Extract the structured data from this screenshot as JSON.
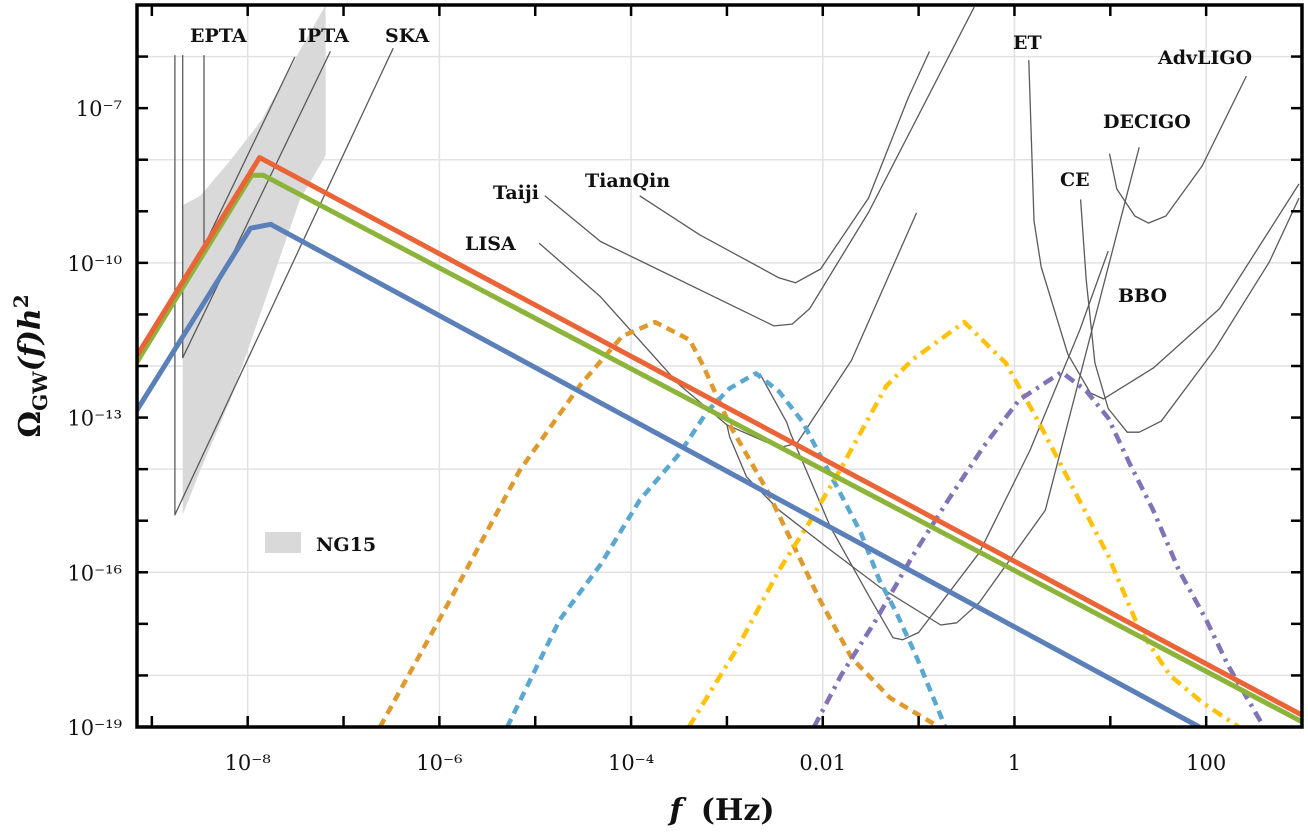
{
  "chart_data": {
    "type": "line",
    "xscale": "log",
    "yscale": "log",
    "xlim": [
      7e-10,
      1000
    ],
    "ylim": [
      1e-19,
      1e-05
    ],
    "grid": true,
    "xlabel": {
      "variable": "f",
      "unit": "(Hz)"
    },
    "ylabel": {
      "symbol": "Ω",
      "subscript": "GW",
      "argument": "(f)",
      "suffix": "h",
      "superscript": "2"
    },
    "xticks": [
      {
        "value": 1e-08,
        "label": "10⁻⁸"
      },
      {
        "value": 1e-06,
        "label": "10⁻⁶"
      },
      {
        "value": 0.0001,
        "label": "10⁻⁴"
      },
      {
        "value": 0.01,
        "label": "0.01"
      },
      {
        "value": 1,
        "label": "1"
      },
      {
        "value": 100,
        "label": "100"
      }
    ],
    "yticks": [
      {
        "value": 1e-07,
        "label": "10⁻⁷"
      },
      {
        "value": 1e-10,
        "label": "10⁻¹⁰"
      },
      {
        "value": 1e-13,
        "label": "10⁻¹³"
      },
      {
        "value": 1e-16,
        "label": "10⁻¹⁶"
      },
      {
        "value": 1e-19,
        "label": "10⁻¹⁹"
      }
    ],
    "band": {
      "name": "NG15",
      "color": "#d9d9d9",
      "upper": [
        [
          2.1e-09,
          1.3e-09
        ],
        [
          3.2e-09,
          2e-09
        ],
        [
          6.6e-09,
          9.8e-09
        ],
        [
          1.4e-08,
          5.9e-08
        ],
        [
          3.5e-08,
          1.3e-06
        ],
        [
          6.5e-08,
          1e-05
        ]
      ],
      "lower": [
        [
          2.1e-09,
          1.3e-15
        ],
        [
          3.2e-09,
          9.5e-15
        ],
        [
          6.6e-09,
          2.2e-13
        ],
        [
          1.4e-08,
          1.2e-11
        ],
        [
          3.5e-08,
          1.66e-09
        ],
        [
          6.5e-08,
          1.2e-08
        ]
      ]
    },
    "sensitivity_curves": [
      {
        "name": "EPTA",
        "points": [
          [
            3.5e-09,
            1.07e-06
          ],
          [
            3.5e-09,
            2.1e-10
          ],
          [
            3.1e-08,
            9.8e-07
          ]
        ]
      },
      {
        "name": "IPTA",
        "points": [
          [
            2.1e-09,
            1.07e-06
          ],
          [
            2.1e-09,
            1.45e-12
          ],
          [
            7.3e-08,
            1.26e-06
          ]
        ]
      },
      {
        "name": "SKA",
        "points": [
          [
            1.74e-09,
            1.07e-06
          ],
          [
            1.74e-09,
            1.3e-15
          ],
          [
            3.3e-07,
            1.45e-06
          ]
        ]
      },
      {
        "name": "Taiji",
        "points": [
          [
            1.26e-05,
            2e-09
          ],
          [
            4.8e-05,
            2.6e-10
          ],
          [
            0.0031,
            6e-12
          ],
          [
            0.0048,
            6.5e-12
          ],
          [
            0.0073,
            1.3e-11
          ],
          [
            0.03,
            9.5e-10
          ],
          [
            0.38,
            9.1e-06
          ]
        ]
      },
      {
        "name": "TianQin",
        "points": [
          [
            0.000123,
            2e-09
          ],
          [
            0.00052,
            3.5e-10
          ],
          [
            0.0035,
            5.1e-11
          ],
          [
            0.0052,
            4.1e-11
          ],
          [
            0.0095,
            7.6e-11
          ],
          [
            0.03,
            1.8e-09
          ],
          [
            0.078,
            1.6e-07
          ],
          [
            0.13,
            1.26e-06
          ]
        ]
      },
      {
        "name": "LISA",
        "points": [
          [
            1.1e-05,
            2.4e-10
          ],
          [
            4.8e-05,
            2.2e-11
          ],
          [
            0.00032,
            4.3e-13
          ],
          [
            0.001,
            7.2e-14
          ],
          [
            0.0035,
            2.6e-14
          ],
          [
            0.0054,
            3.2e-14
          ],
          [
            0.02,
            1.3e-12
          ],
          [
            0.095,
            9.3e-10
          ]
        ]
      },
      {
        "name": "ET",
        "points": [
          [
            1.41,
            8.5e-07
          ],
          [
            1.6,
            6.5e-10
          ],
          [
            1.9,
            8.3e-11
          ],
          [
            3.6,
            1.7e-12
          ],
          [
            6.2,
            3e-13
          ],
          [
            8.5,
            2.3e-13
          ],
          [
            28,
            9.1e-13
          ],
          [
            138,
            1.3e-11
          ],
          [
            930,
            3.4e-09
          ]
        ]
      },
      {
        "name": "AdvLIGO",
        "points": [
          [
            9.8,
            1.3e-08
          ],
          [
            11.7,
            2.7e-09
          ],
          [
            18,
            8.1e-10
          ],
          [
            25,
            5.9e-10
          ],
          [
            38,
            8.1e-10
          ],
          [
            91,
            7.6e-09
          ],
          [
            263,
            4.2e-07
          ]
        ]
      },
      {
        "name": "DECIGO",
        "points": [
          [
            0.001,
            7.2e-14
          ],
          [
            0.00107,
            4.2e-14
          ],
          [
            0.0016,
            7.1e-15
          ],
          [
            0.0035,
            1.6e-15
          ],
          [
            0.012,
            2.7e-16
          ],
          [
            0.039,
            5.2e-17
          ],
          [
            0.17,
            9.5e-18
          ],
          [
            0.25,
            1.05e-17
          ],
          [
            0.43,
            2.6e-17
          ],
          [
            2.1,
            1.6e-15
          ],
          [
            20,
            1.74e-08
          ]
        ]
      },
      {
        "name": "CE",
        "points": [
          [
            4.9,
            1.7e-09
          ],
          [
            5.6,
            4.7e-11
          ],
          [
            6.9,
            1.15e-12
          ],
          [
            9.5,
            1.5e-13
          ],
          [
            15,
            5.2e-14
          ],
          [
            20,
            5.2e-14
          ],
          [
            34,
            8.5e-14
          ],
          [
            123,
            2.1e-12
          ],
          [
            457,
            1.05e-10
          ],
          [
            930,
            1.8e-09
          ]
        ]
      },
      {
        "name": "BBO",
        "points": [
          [
            0.0022,
            7.2e-13
          ],
          [
            0.0042,
            8.1e-14
          ],
          [
            0.0046,
            5e-14
          ],
          [
            0.012,
            7.6e-16
          ],
          [
            0.029,
            4e-17
          ],
          [
            0.054,
            5.4e-18
          ],
          [
            0.068,
            4.9e-18
          ],
          [
            0.1,
            6.8e-18
          ],
          [
            0.43,
            2.4e-16
          ],
          [
            1.45,
            2.3e-14
          ],
          [
            4.8,
            5e-12
          ],
          [
            9.5,
            1.7e-10
          ]
        ]
      }
    ],
    "series": [
      {
        "color": "#ea6438",
        "style": "solid",
        "points": [
          [
            7e-10,
            1.6e-12
          ],
          [
            1.33e-08,
            1.1e-08
          ],
          [
            1000,
            1.7e-19
          ]
        ]
      },
      {
        "color": "#8db43a",
        "style": "solid",
        "points": [
          [
            7e-10,
            1.2e-12
          ],
          [
            1.1e-08,
            5e-09
          ],
          [
            1.45e-08,
            5e-09
          ],
          [
            1000,
            1.26e-19
          ]
        ]
      },
      {
        "color": "#5b7fb8",
        "style": "solid",
        "points": [
          [
            7e-10,
            1.4e-13
          ],
          [
            1.07e-08,
            4.7e-10
          ],
          [
            1.74e-08,
            5.6e-10
          ],
          [
            85,
            1e-19
          ]
        ]
      },
      {
        "color": "#de9a2e",
        "style": "dashed",
        "points": [
          [
            2.4e-07,
            1e-19
          ],
          [
            1.3e-06,
            2.95e-17
          ],
          [
            6.9e-06,
            9.5e-15
          ],
          [
            2.95e-05,
            4.3e-13
          ],
          [
            8.1e-05,
            3.8e-12
          ],
          [
            0.000178,
            7.1e-12
          ],
          [
            0.00041,
            3.2e-12
          ],
          [
            0.00056,
            1.05e-12
          ],
          [
            0.00107,
            7.2e-14
          ],
          [
            0.0026,
            4e-15
          ],
          [
            0.0054,
            2.4e-16
          ],
          [
            0.0093,
            2.95e-17
          ],
          [
            0.02,
            2.2e-18
          ],
          [
            0.05,
            3.7e-19
          ],
          [
            0.15,
            1.1e-19
          ]
        ]
      },
      {
        "color": "#5aa8d0",
        "style": "dashed",
        "points": [
          [
            5.1e-06,
            1e-19
          ],
          [
            1.8e-05,
            1.2e-17
          ],
          [
            4.8e-05,
            1.4e-16
          ],
          [
            0.000123,
            2.5e-15
          ],
          [
            0.00032,
            2e-14
          ],
          [
            0.00062,
            1.3e-13
          ],
          [
            0.00107,
            3.7e-13
          ],
          [
            0.002,
            7.2e-13
          ],
          [
            0.0035,
            3.2e-13
          ],
          [
            0.0062,
            8.1e-14
          ],
          [
            0.0093,
            1.9e-14
          ],
          [
            0.014,
            4.6e-15
          ],
          [
            0.025,
            5.8e-16
          ],
          [
            0.039,
            7.1e-17
          ],
          [
            0.059,
            1.6e-17
          ],
          [
            0.095,
            2.3e-18
          ],
          [
            0.19,
            1e-19
          ]
        ]
      },
      {
        "color": "#ffc20a",
        "style": "dashdot",
        "points": [
          [
            0.0004,
            1e-19
          ],
          [
            0.00126,
            3.2e-18
          ],
          [
            0.0035,
            1.1e-16
          ],
          [
            0.0072,
            9.1e-16
          ],
          [
            0.015,
            9.3e-15
          ],
          [
            0.046,
            4.1e-13
          ],
          [
            0.085,
            1.3e-12
          ],
          [
            0.3,
            7.1e-12
          ],
          [
            0.81,
            1.15e-12
          ],
          [
            1.7,
            9.8e-14
          ],
          [
            4.0,
            4.6e-15
          ],
          [
            9.5,
            2.1e-16
          ],
          [
            20,
            7.9e-18
          ],
          [
            42,
            1e-18
          ],
          [
            91,
            3e-19
          ],
          [
            219,
            1e-19
          ]
        ]
      },
      {
        "color": "#8173b5",
        "style": "dashdot",
        "points": [
          [
            0.0081,
            1e-19
          ],
          [
            0.0155,
            1e-18
          ],
          [
            0.036,
            1.2e-17
          ],
          [
            0.087,
            2.1e-16
          ],
          [
            0.2,
            2.4e-15
          ],
          [
            0.48,
            2.8e-14
          ],
          [
            1.12,
            2.2e-13
          ],
          [
            3.1,
            7.6e-13
          ],
          [
            5.6,
            3.3e-13
          ],
          [
            9.5,
            9.8e-14
          ],
          [
            16,
            1.26e-14
          ],
          [
            28,
            1.6e-15
          ],
          [
            52,
            1.1e-16
          ],
          [
            100,
            1.2e-17
          ],
          [
            170,
            1.55e-18
          ],
          [
            400,
            1e-19
          ]
        ]
      }
    ]
  }
}
